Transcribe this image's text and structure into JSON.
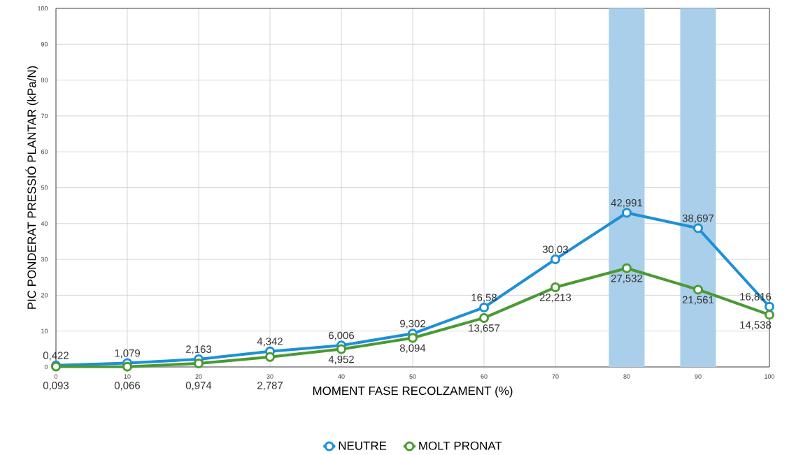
{
  "chart_data": {
    "type": "line",
    "xlabel": "MOMENT FASE RECOLZAMENT (%)",
    "ylabel": "PIC PONDERAT PRESSIÓ PLANTAR (kPa/N)",
    "x": [
      0,
      10,
      20,
      30,
      40,
      50,
      60,
      70,
      80,
      90,
      100
    ],
    "xlim": [
      0,
      100
    ],
    "xticks": [
      0,
      10,
      20,
      30,
      40,
      50,
      60,
      70,
      80,
      90,
      100
    ],
    "ylim": [
      0,
      100
    ],
    "yticks": [
      0,
      10,
      20,
      30,
      40,
      50,
      60,
      70,
      80,
      90,
      100
    ],
    "grid": true,
    "legend": "bottom",
    "marker": "circle",
    "line_style": "solid",
    "bands": [
      {
        "axis": "x",
        "from": 77.5,
        "to": 82.5,
        "color": "#a9cfea"
      },
      {
        "axis": "x",
        "from": 87.5,
        "to": 92.5,
        "color": "#a9cfea"
      }
    ],
    "series": [
      {
        "name": "NEUTRE",
        "color": "#1f8fd6",
        "values": [
          0.422,
          1.079,
          2.163,
          4.342,
          6.006,
          9.302,
          16.58,
          30.03,
          42.991,
          38.697,
          16.816
        ],
        "value_labels": [
          "0,422",
          "1,079",
          "2,163",
          "4,342",
          "6,006",
          "9,302",
          "16,58",
          "30,03",
          "42,991",
          "38,697",
          "16,816"
        ]
      },
      {
        "name": "MOLT PRONAT",
        "color": "#4a9a32",
        "values": [
          0.093,
          0.066,
          0.974,
          2.787,
          4.952,
          8.094,
          13.657,
          22.213,
          27.532,
          21.561,
          14.538
        ],
        "value_labels": [
          "0,093",
          "0,066",
          "0,974",
          "2,787",
          "4,952",
          "8,094",
          "13,657",
          "22,213",
          "27,532",
          "21,561",
          "14,538"
        ]
      }
    ]
  }
}
